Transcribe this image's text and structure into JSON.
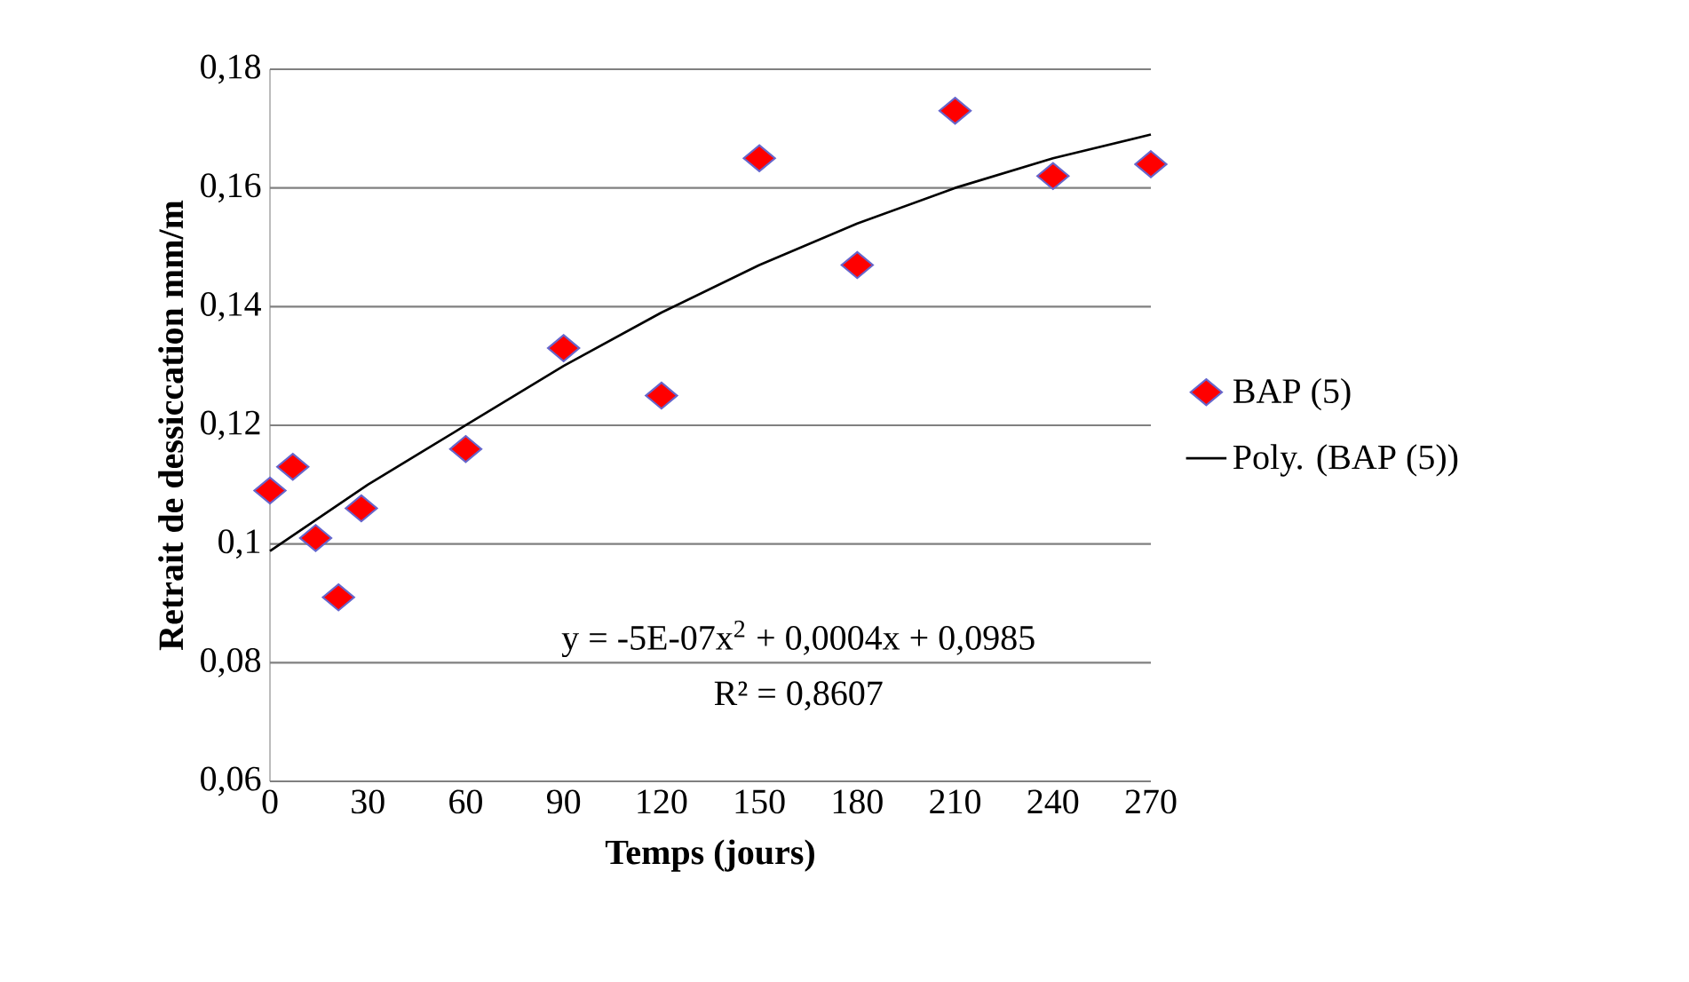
{
  "chart_data": {
    "type": "scatter",
    "xlabel": "Temps (jours)",
    "ylabel": "Retrait de dessiccation mm/m",
    "xlim": [
      0,
      270
    ],
    "xticks": [
      0,
      30,
      60,
      90,
      120,
      150,
      180,
      210,
      240,
      270
    ],
    "ylim": [
      0.06,
      0.18
    ],
    "yticks": [
      {
        "value": 0.06,
        "label": "0,06"
      },
      {
        "value": 0.08,
        "label": "0,08"
      },
      {
        "value": 0.1,
        "label": "0,1"
      },
      {
        "value": 0.12,
        "label": "0,12"
      },
      {
        "value": 0.14,
        "label": "0,14"
      },
      {
        "value": 0.16,
        "label": "0,16"
      },
      {
        "value": 0.18,
        "label": "0,18"
      }
    ],
    "grid": "y",
    "legend": "right",
    "series": [
      {
        "name": "BAP (5)",
        "marker": "diamond",
        "color": "#ff0000",
        "x": [
          0,
          7,
          14,
          21,
          28,
          60,
          90,
          120,
          150,
          180,
          210,
          240,
          270
        ],
        "values": [
          0.109,
          0.113,
          0.101,
          0.091,
          0.106,
          0.116,
          0.133,
          0.125,
          0.165,
          0.147,
          0.173,
          0.162,
          0.164
        ]
      },
      {
        "name": "Poly. (BAP (5))",
        "type": "line",
        "marker": "none",
        "line_style": "solid",
        "color": "#000000",
        "x": [
          0,
          30,
          60,
          90,
          120,
          150,
          180,
          210,
          240,
          270
        ],
        "values": [
          0.0988,
          0.11,
          0.12,
          0.13,
          0.139,
          0.147,
          0.154,
          0.16,
          0.165,
          0.169
        ]
      }
    ],
    "annotations": [
      "y = -5E-07x$^{2}$ + 0,0004x + 0,0985",
      "R² = 0,8607"
    ]
  }
}
